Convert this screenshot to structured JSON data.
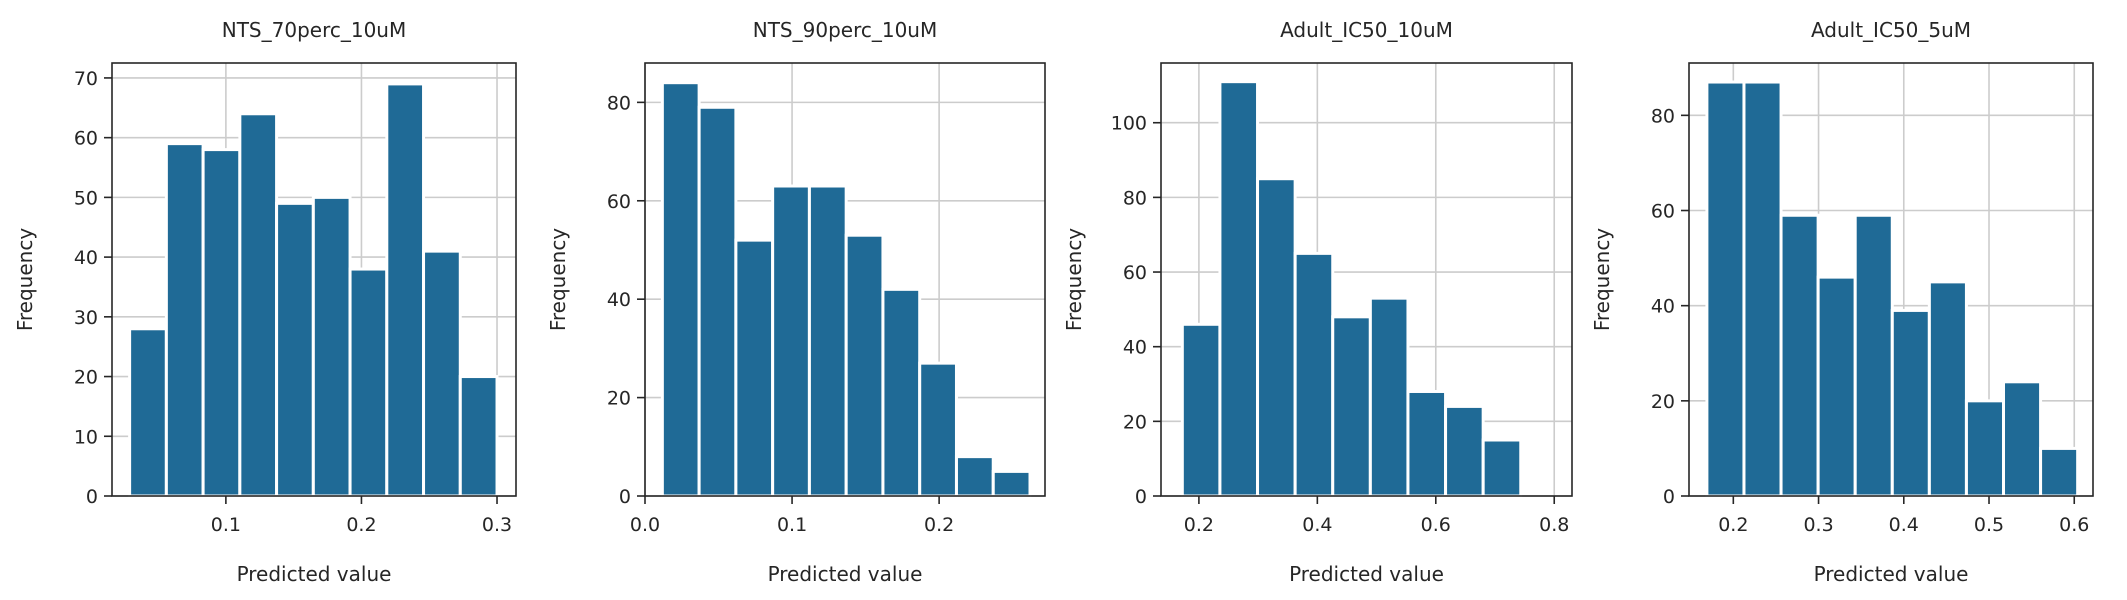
{
  "chart_data": [
    {
      "type": "bar",
      "title": "NTS_70perc_10uM",
      "xlabel": "Predicted value",
      "ylabel": "Frequency",
      "xlim": [
        0.016,
        0.314
      ],
      "ylim": [
        0,
        72.5
      ],
      "xticks": [
        0.1,
        0.2,
        0.3
      ],
      "xtick_labels": [
        "0.1",
        "0.2",
        "0.3"
      ],
      "yticks": [
        0,
        10,
        20,
        30,
        40,
        50,
        60,
        70
      ],
      "ytick_labels": [
        "0",
        "10",
        "20",
        "30",
        "40",
        "50",
        "60",
        "70"
      ],
      "grid": true,
      "bin_edges": [
        0.029,
        0.0561,
        0.0832,
        0.1103,
        0.1374,
        0.1645,
        0.1916,
        0.2187,
        0.2458,
        0.2729,
        0.3
      ],
      "values": [
        28,
        59,
        58,
        64,
        49,
        50,
        38,
        69,
        41,
        20
      ],
      "color": "#1f6a96"
    },
    {
      "type": "bar",
      "title": "NTS_90perc_10uM",
      "xlabel": "Predicted value",
      "ylabel": "Frequency",
      "xlim": [
        0.0,
        0.272
      ],
      "ylim": [
        0,
        88
      ],
      "xticks": [
        0.0,
        0.1,
        0.2
      ],
      "xtick_labels": [
        "0.0",
        "0.1",
        "0.2"
      ],
      "yticks": [
        0,
        20,
        40,
        60,
        80
      ],
      "ytick_labels": [
        "0",
        "20",
        "40",
        "60",
        "80"
      ],
      "grid": true,
      "bin_edges": [
        0.0118,
        0.0368,
        0.0618,
        0.0868,
        0.1118,
        0.1368,
        0.1618,
        0.1868,
        0.2118,
        0.2368,
        0.2618
      ],
      "values": [
        84,
        79,
        52,
        63,
        63,
        53,
        42,
        27,
        8,
        5
      ],
      "color": "#1f6a96"
    },
    {
      "type": "bar",
      "title": "Adult_IC50_10uM",
      "xlabel": "Predicted value",
      "ylabel": "Frequency",
      "xlim": [
        0.136,
        0.83
      ],
      "ylim": [
        0,
        116
      ],
      "xticks": [
        0.2,
        0.4,
        0.6,
        0.8
      ],
      "xtick_labels": [
        "0.2",
        "0.4",
        "0.6",
        "0.8"
      ],
      "yticks": [
        0,
        20,
        40,
        60,
        80,
        100
      ],
      "ytick_labels": [
        "0",
        "20",
        "40",
        "60",
        "80",
        "100"
      ],
      "grid": true,
      "bin_edges": [
        0.172,
        0.2355,
        0.299,
        0.3625,
        0.426,
        0.4895,
        0.553,
        0.6165,
        0.68,
        0.7435,
        0.807
      ],
      "values": [
        46,
        111,
        85,
        65,
        48,
        53,
        28,
        24,
        15,
        0
      ],
      "color": "#1f6a96"
    },
    {
      "type": "bar",
      "title": "Adult_IC50_5uM",
      "xlabel": "Predicted value",
      "ylabel": "Frequency",
      "xlim": [
        0.148,
        0.622
      ],
      "ylim": [
        0,
        91
      ],
      "xticks": [
        0.2,
        0.3,
        0.4,
        0.5,
        0.6
      ],
      "xtick_labels": [
        "0.2",
        "0.3",
        "0.4",
        "0.5",
        "0.6"
      ],
      "yticks": [
        0,
        20,
        40,
        60,
        80
      ],
      "ytick_labels": [
        "0",
        "20",
        "40",
        "60",
        "80"
      ],
      "grid": true,
      "bin_edges": [
        0.169,
        0.2125,
        0.256,
        0.2995,
        0.343,
        0.3865,
        0.43,
        0.4735,
        0.517,
        0.5605,
        0.604
      ],
      "values": [
        87,
        87,
        59,
        46,
        59,
        39,
        45,
        20,
        24,
        10
      ],
      "color": "#1f6a96"
    }
  ]
}
